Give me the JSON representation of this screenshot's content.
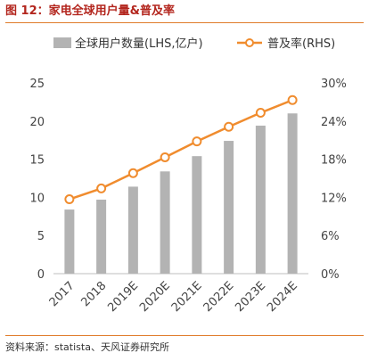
{
  "figure": {
    "title": "图 12：家电全球用户量&普及率",
    "source": "资料来源：statista、天风证券研究所"
  },
  "chart_data": {
    "type": "bar",
    "categories": [
      "2017",
      "2018",
      "2019E",
      "2020E",
      "2021E",
      "2022E",
      "2023E",
      "2024E"
    ],
    "series": [
      {
        "name": "全球用户数量(LHS,亿户)",
        "type": "bar",
        "axis": "left",
        "color": "#b3b3b3",
        "values": [
          8.4,
          9.7,
          11.4,
          13.4,
          15.4,
          17.4,
          19.4,
          21.0
        ]
      },
      {
        "name": "普及率(RHS)",
        "type": "line",
        "axis": "right",
        "color": "#f08c2e",
        "values": [
          11.7,
          13.4,
          15.8,
          18.3,
          20.8,
          23.1,
          25.3,
          27.3
        ]
      }
    ],
    "left_axis": {
      "min": 0,
      "max": 25,
      "ticks": [
        "0",
        "5",
        "10",
        "15",
        "20",
        "25"
      ]
    },
    "right_axis": {
      "min": 0,
      "max": 30,
      "unit": "%",
      "ticks": [
        "0%",
        "6%",
        "12%",
        "18%",
        "24%",
        "30%"
      ]
    },
    "legend": "top",
    "grid": false
  }
}
